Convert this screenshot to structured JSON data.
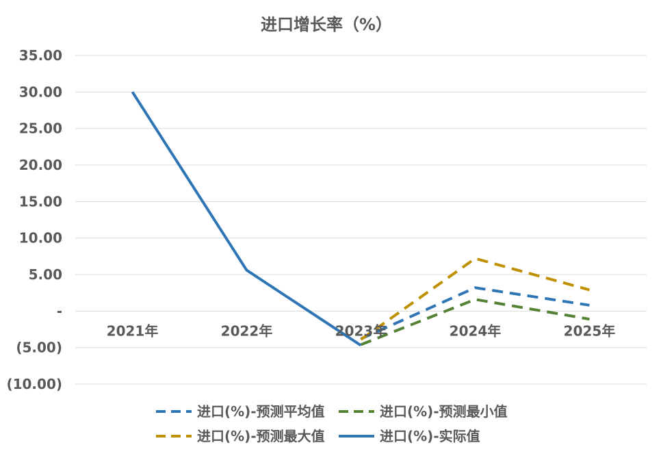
{
  "chart_data": {
    "type": "line",
    "title": "进口增长率（%）",
    "categories": [
      "2021年",
      "2022年",
      "2023年",
      "2024年",
      "2025年"
    ],
    "ylim": [
      -10,
      35
    ],
    "yticks": [
      {
        "value": 35,
        "label": "35.00"
      },
      {
        "value": 30,
        "label": "30.00"
      },
      {
        "value": 25,
        "label": "25.00"
      },
      {
        "value": 20,
        "label": "20.00"
      },
      {
        "value": 15,
        "label": "15.00"
      },
      {
        "value": 10,
        "label": "10.00"
      },
      {
        "value": 5,
        "label": "5.00"
      },
      {
        "value": 0,
        "label": "-"
      },
      {
        "value": -5,
        "label": "(5.00)"
      },
      {
        "value": -10,
        "label": "(10.00)"
      }
    ],
    "grid": true,
    "legend_position": "bottom",
    "series": [
      {
        "name": "进口(%)-预测平均值",
        "color": "#2e75b6",
        "dash": true,
        "values": [
          null,
          null,
          -3.8,
          3.2,
          0.8
        ]
      },
      {
        "name": "进口(%)-预测最小值",
        "color": "#548235",
        "dash": true,
        "values": [
          null,
          null,
          -4.6,
          1.6,
          -1.1
        ]
      },
      {
        "name": "进口(%)-预测最大值",
        "color": "#bf9000",
        "dash": true,
        "values": [
          null,
          null,
          -3.9,
          7.2,
          2.9
        ]
      },
      {
        "name": "进口(%)-实际值",
        "color": "#2e75b6",
        "dash": false,
        "values": [
          30.0,
          5.6,
          -4.7,
          null,
          null
        ]
      }
    ]
  }
}
